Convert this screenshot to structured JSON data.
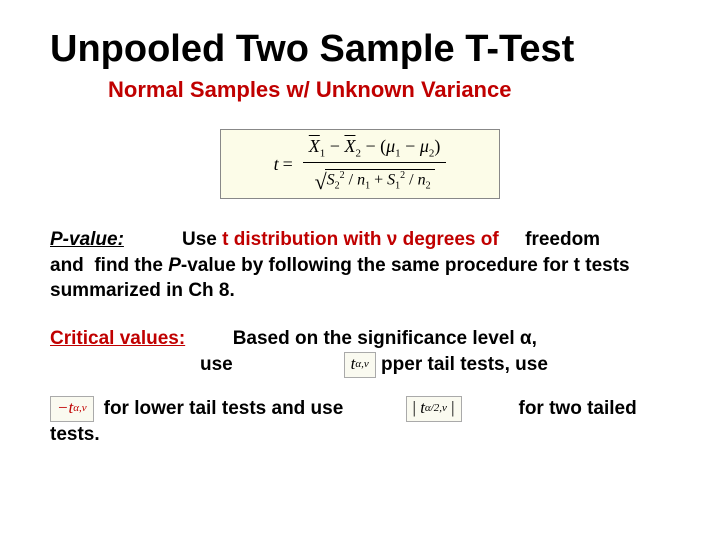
{
  "title": "Unpooled Two Sample T-Test",
  "subtitle": "Normal Samples w/ Unknown Variance",
  "subtitle_color": "#c00000",
  "formula": {
    "lhs": "t =",
    "numerator": "X̄₁ − X̄₂ − (μ₁ − μ₂)",
    "denominator": "√( S₂² / n₁ + S₁² / n₂ )",
    "bg_color": "#fcfce8"
  },
  "pvalue": {
    "label": "P-value:",
    "text_part1": "Use ",
    "highlight": "t distribution with ν degrees of",
    "highlight_color": "#c00000",
    "text_part2": "    freedom and  find the ",
    "italic": "P",
    "text_part3": "-value by following the same procedure for t tests summarized in Ch 8."
  },
  "critical": {
    "label": "Critical values:",
    "label_color": "#c00000",
    "text1": "Based on the significance level α,",
    "text2_pre": "use",
    "text2_post": "pper tail tests, use",
    "math_upper": "t",
    "math_upper_sub": "α,ν",
    "math_lower_prefix": "−t",
    "math_lower_sub": "α,ν",
    "lower_text": "for lower tail tests and use",
    "math_two": "| t",
    "math_two_sub": "α/2,ν",
    "math_two_close": "|",
    "two_text": "for two tailed",
    "tests": "tests."
  },
  "colors": {
    "text": "#000000",
    "accent": "#c00000"
  }
}
